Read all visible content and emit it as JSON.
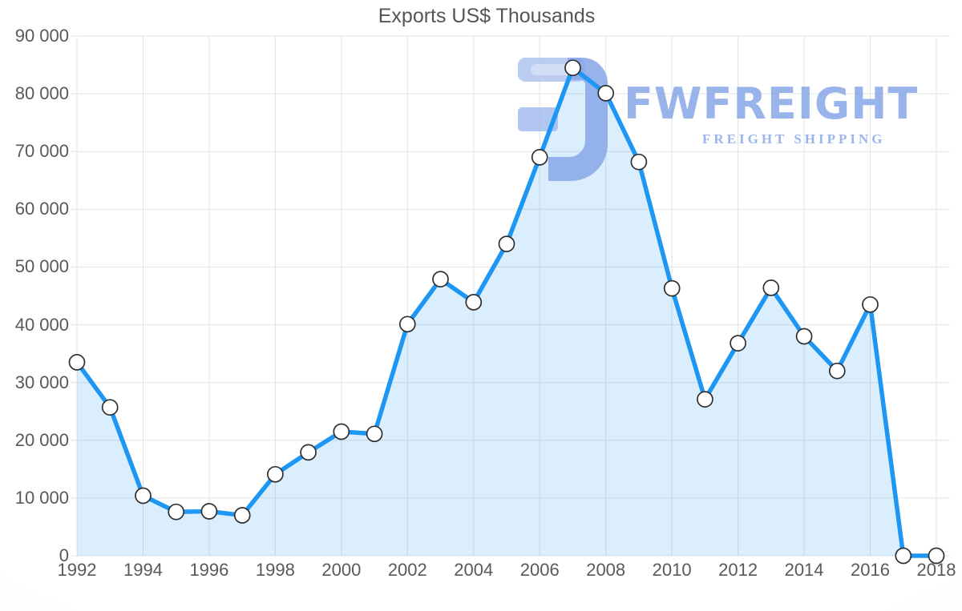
{
  "title": "Exports US$ Thousands",
  "watermark": {
    "brand": "FWFREIGHT",
    "tagline": "FREIGHT SHIPPING"
  },
  "chart_data": {
    "type": "area",
    "title": "Exports US$ Thousands",
    "series_name": "Exports US$ Thousands",
    "x": [
      1992,
      1993,
      1994,
      1995,
      1996,
      1997,
      1998,
      1999,
      2000,
      2001,
      2002,
      2003,
      2004,
      2005,
      2006,
      2007,
      2008,
      2009,
      2010,
      2011,
      2012,
      2013,
      2014,
      2015,
      2016,
      2017,
      2018
    ],
    "values": [
      33500,
      25700,
      10400,
      7600,
      7700,
      7000,
      14100,
      17900,
      21500,
      21100,
      40100,
      47900,
      43900,
      54000,
      69000,
      84500,
      80100,
      68200,
      46300,
      27100,
      36800,
      46400,
      38000,
      32000,
      43500,
      0,
      0
    ],
    "xlim": [
      1992,
      2018
    ],
    "ylim": [
      0,
      90000
    ],
    "x_ticks": [
      1992,
      1994,
      1996,
      1998,
      2000,
      2002,
      2004,
      2006,
      2008,
      2010,
      2012,
      2014,
      2016,
      2018
    ],
    "y_ticks": [
      0,
      10000,
      20000,
      30000,
      40000,
      50000,
      60000,
      70000,
      80000,
      90000
    ],
    "y_tick_labels": [
      "0",
      "10 000",
      "20 000",
      "30 000",
      "40 000",
      "50 000",
      "60 000",
      "70 000",
      "80 000",
      "90 000"
    ],
    "grid": true,
    "legend": "none",
    "marker": "circle",
    "colors": {
      "line": "#1e96f3",
      "fill": "#2196f3",
      "fill_opacity": 0.16,
      "marker_fill": "#ffffff",
      "marker_stroke": "#2f2f2f",
      "grid": "#e3e3e3",
      "axis_text": "#595959",
      "watermark": "#8babe9"
    }
  }
}
